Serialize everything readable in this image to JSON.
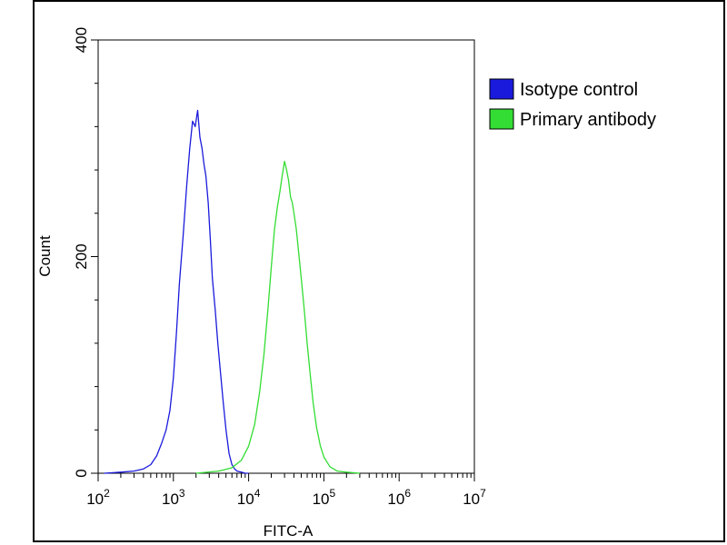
{
  "chart_data": {
    "type": "line",
    "title": "",
    "xlabel": "FITC-A",
    "ylabel": "Count",
    "xscale": "log",
    "xlim": [
      100,
      10000000
    ],
    "ylim": [
      0,
      400
    ],
    "x_ticks": [
      {
        "base": "10",
        "exp": "2",
        "value": 100
      },
      {
        "base": "10",
        "exp": "3",
        "value": 1000
      },
      {
        "base": "10",
        "exp": "4",
        "value": 10000
      },
      {
        "base": "10",
        "exp": "5",
        "value": 100000
      },
      {
        "base": "10",
        "exp": "6",
        "value": 1000000
      },
      {
        "base": "10",
        "exp": "7",
        "value": 10000000
      }
    ],
    "y_ticks": [
      {
        "label": "0",
        "value": 0
      },
      {
        "label": "200",
        "value": 200
      },
      {
        "label": "400",
        "value": 400
      }
    ],
    "grid": false,
    "legend_position": "top-right-outside",
    "series": [
      {
        "name": "Isotype control",
        "color": "#1a1adc",
        "x": [
          120,
          200,
          300,
          400,
          500,
          600,
          700,
          800,
          900,
          1000,
          1100,
          1200,
          1350,
          1500,
          1650,
          1800,
          1950,
          2100,
          2250,
          2400,
          2550,
          2700,
          2900,
          3100,
          3300,
          3600,
          3900,
          4200,
          4600,
          5000,
          5500,
          6000,
          6500,
          7000,
          8000,
          9000,
          10000
        ],
        "y": [
          0,
          1,
          2,
          4,
          8,
          16,
          28,
          40,
          58,
          88,
          130,
          175,
          220,
          265,
          300,
          325,
          320,
          335,
          310,
          300,
          285,
          275,
          250,
          215,
          180,
          150,
          120,
          95,
          65,
          40,
          18,
          8,
          4,
          2,
          1,
          0,
          0
        ]
      },
      {
        "name": "Primary antibody",
        "color": "#33dd33",
        "x": [
          2000,
          4000,
          6000,
          8000,
          10000,
          12000,
          14000,
          16000,
          18000,
          20000,
          22000,
          24000,
          26000,
          28000,
          30000,
          32000,
          34000,
          36000,
          38000,
          40000,
          43000,
          46000,
          50000,
          55000,
          60000,
          66000,
          72000,
          80000,
          90000,
          100000,
          120000,
          150000,
          200000,
          300000
        ],
        "y": [
          0,
          2,
          5,
          12,
          25,
          45,
          75,
          110,
          150,
          190,
          225,
          245,
          260,
          275,
          288,
          280,
          270,
          255,
          250,
          240,
          225,
          205,
          180,
          150,
          120,
          90,
          65,
          42,
          25,
          15,
          6,
          2,
          1,
          0
        ]
      }
    ]
  }
}
